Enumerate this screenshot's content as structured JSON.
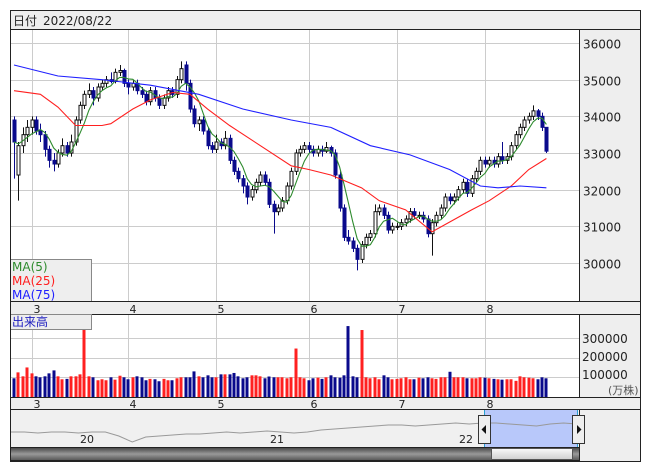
{
  "header": {
    "date_label": "日付",
    "date_value": "2022/08/22"
  },
  "legend": {
    "ma5": {
      "label": "MA(5)",
      "color": "#2e8b2e"
    },
    "ma25": {
      "label": "MA(25)",
      "color": "#ff2020"
    },
    "ma75": {
      "label": "MA(75)",
      "color": "#2020ff"
    }
  },
  "volume_panel": {
    "label": "出来高",
    "unit": "(万株)",
    "ticks": [
      "300000",
      "200000",
      "100000"
    ]
  },
  "navigator": {
    "labels": [
      "20",
      "21",
      "22"
    ]
  },
  "colors": {
    "up_candle": "#ffffff",
    "down_candle": "#0a0a8c",
    "up_volume": "#ff2020",
    "down_volume": "#0a0a8c",
    "selection": "#b8c8fa"
  },
  "chart_data": {
    "type": "candlestick",
    "title": "",
    "y_ticks": [
      "36000",
      "35000",
      "34000",
      "33000",
      "32000",
      "31000",
      "30000"
    ],
    "ylim": [
      29000,
      36300
    ],
    "month_ticks": [
      {
        "label": "3",
        "index": 4
      },
      {
        "label": "4",
        "index": 26
      },
      {
        "label": "5",
        "index": 46
      },
      {
        "label": "6",
        "index": 67
      },
      {
        "label": "7",
        "index": 87
      },
      {
        "label": "8",
        "index": 107
      }
    ],
    "grid": true,
    "ohlc": [
      [
        33900,
        34000,
        32300,
        33300
      ],
      [
        32400,
        33300,
        31700,
        33200
      ],
      [
        33200,
        33700,
        33000,
        33500
      ],
      [
        33500,
        33900,
        33300,
        33700
      ],
      [
        33700,
        34000,
        33500,
        33900
      ],
      [
        33900,
        34000,
        33500,
        33600
      ],
      [
        33600,
        33800,
        33300,
        33500
      ],
      [
        33500,
        33600,
        32900,
        33100
      ],
      [
        33100,
        33200,
        32600,
        32800
      ],
      [
        32800,
        33000,
        32500,
        32700
      ],
      [
        32700,
        33100,
        32600,
        33000
      ],
      [
        33000,
        33400,
        32900,
        33200
      ],
      [
        33200,
        33300,
        32900,
        33000
      ],
      [
        33000,
        33500,
        32900,
        33300
      ],
      [
        33300,
        34000,
        33200,
        33900
      ],
      [
        33900,
        34400,
        33800,
        34300
      ],
      [
        34300,
        34700,
        34200,
        34600
      ],
      [
        34600,
        34900,
        34500,
        34700
      ],
      [
        34700,
        34800,
        34300,
        34500
      ],
      [
        34500,
        34900,
        34400,
        34800
      ],
      [
        34800,
        35000,
        34700,
        34900
      ],
      [
        34900,
        35100,
        34800,
        35000
      ],
      [
        35000,
        35200,
        34900,
        34950
      ],
      [
        34950,
        35300,
        34900,
        35200
      ],
      [
        35200,
        35400,
        35100,
        35250
      ],
      [
        35250,
        35300,
        34800,
        34900
      ],
      [
        34900,
        35000,
        34600,
        34800
      ],
      [
        34800,
        35000,
        34700,
        34900
      ],
      [
        34900,
        35000,
        34600,
        34700
      ],
      [
        34700,
        34800,
        34500,
        34600
      ],
      [
        34600,
        34700,
        34300,
        34400
      ],
      [
        34400,
        34800,
        34300,
        34700
      ],
      [
        34700,
        34800,
        34400,
        34500
      ],
      [
        34500,
        34600,
        34200,
        34300
      ],
      [
        34300,
        34600,
        34200,
        34500
      ],
      [
        34500,
        34800,
        34400,
        34700
      ],
      [
        34700,
        34800,
        34500,
        34600
      ],
      [
        34600,
        35100,
        34500,
        35000
      ],
      [
        35000,
        35500,
        34900,
        35300
      ],
      [
        35400,
        35500,
        34700,
        34900
      ],
      [
        34900,
        35000,
        34100,
        34200
      ],
      [
        34200,
        34300,
        33700,
        33800
      ],
      [
        33800,
        34000,
        33600,
        33900
      ],
      [
        33900,
        34000,
        33500,
        33600
      ],
      [
        33600,
        33700,
        33100,
        33200
      ],
      [
        33200,
        33300,
        33000,
        33100
      ],
      [
        33100,
        33500,
        33000,
        33300
      ],
      [
        33300,
        33400,
        33100,
        33200
      ],
      [
        33200,
        33600,
        33100,
        33400
      ],
      [
        33400,
        33500,
        32700,
        32800
      ],
      [
        32800,
        32900,
        32400,
        32500
      ],
      [
        32500,
        32600,
        32200,
        32300
      ],
      [
        32300,
        32400,
        31900,
        32100
      ],
      [
        32100,
        32200,
        31600,
        31800
      ],
      [
        31800,
        32100,
        31700,
        32000
      ],
      [
        32000,
        32300,
        31900,
        32200
      ],
      [
        32200,
        32500,
        32100,
        32400
      ],
      [
        32400,
        32500,
        32100,
        32200
      ],
      [
        32200,
        32300,
        31500,
        31600
      ],
      [
        31600,
        31700,
        30800,
        31400
      ],
      [
        31400,
        31600,
        31300,
        31500
      ],
      [
        31500,
        31800,
        31400,
        31700
      ],
      [
        31700,
        32200,
        31600,
        32100
      ],
      [
        32100,
        32600,
        32000,
        32500
      ],
      [
        32500,
        33100,
        32400,
        33000
      ],
      [
        33000,
        33200,
        32900,
        33100
      ],
      [
        33100,
        33300,
        33000,
        33200
      ],
      [
        33200,
        33300,
        33000,
        33100
      ],
      [
        33100,
        33200,
        32900,
        33000
      ],
      [
        33000,
        33200,
        32900,
        33100
      ],
      [
        33100,
        33200,
        32900,
        33050
      ],
      [
        33050,
        33300,
        33000,
        33150
      ],
      [
        33150,
        33200,
        32900,
        33000
      ],
      [
        33000,
        33100,
        32300,
        32400
      ],
      [
        32400,
        32500,
        31400,
        31500
      ],
      [
        31500,
        31600,
        30600,
        30700
      ],
      [
        30700,
        30900,
        30500,
        30600
      ],
      [
        30600,
        30700,
        30300,
        30400
      ],
      [
        30400,
        30500,
        29800,
        30100
      ],
      [
        30100,
        30600,
        30000,
        30500
      ],
      [
        30500,
        30800,
        30400,
        30700
      ],
      [
        30700,
        30900,
        30600,
        30800
      ],
      [
        30800,
        31600,
        30700,
        31400
      ],
      [
        31400,
        31600,
        31300,
        31500
      ],
      [
        31500,
        31600,
        31200,
        31300
      ],
      [
        31300,
        31400,
        30800,
        30900
      ],
      [
        30900,
        31100,
        30800,
        31000
      ],
      [
        31000,
        31100,
        30900,
        31000
      ],
      [
        31000,
        31200,
        30900,
        31100
      ],
      [
        31100,
        31300,
        31000,
        31200
      ],
      [
        31200,
        31500,
        31100,
        31400
      ],
      [
        31400,
        31500,
        31200,
        31300
      ],
      [
        31300,
        31400,
        31200,
        31300
      ],
      [
        31300,
        31400,
        31100,
        31200
      ],
      [
        31200,
        31300,
        30700,
        30800
      ],
      [
        30800,
        31200,
        30200,
        31100
      ],
      [
        31100,
        31400,
        31000,
        31300
      ],
      [
        31300,
        31600,
        31200,
        31500
      ],
      [
        31500,
        31900,
        31400,
        31800
      ],
      [
        31800,
        31900,
        31600,
        31700
      ],
      [
        31700,
        31900,
        31600,
        31800
      ],
      [
        31800,
        32100,
        31700,
        32000
      ],
      [
        32000,
        32300,
        31900,
        32200
      ],
      [
        32200,
        32300,
        31800,
        31900
      ],
      [
        31900,
        32400,
        31800,
        32300
      ],
      [
        32300,
        32600,
        32200,
        32500
      ],
      [
        32500,
        32900,
        32400,
        32800
      ],
      [
        32800,
        32900,
        32600,
        32700
      ],
      [
        32700,
        32900,
        32600,
        32800
      ],
      [
        32800,
        32900,
        32600,
        32700
      ],
      [
        32700,
        33000,
        32600,
        32900
      ],
      [
        32900,
        33300,
        32700,
        32800
      ],
      [
        32800,
        33000,
        32700,
        32900
      ],
      [
        32900,
        33300,
        32800,
        33200
      ],
      [
        33200,
        33600,
        33100,
        33500
      ],
      [
        33500,
        33800,
        33400,
        33700
      ],
      [
        33700,
        34000,
        33600,
        33900
      ],
      [
        33900,
        34100,
        33800,
        34000
      ],
      [
        34000,
        34300,
        33900,
        34150
      ],
      [
        34150,
        34200,
        33900,
        34000
      ],
      [
        34000,
        34100,
        33600,
        33700
      ],
      [
        33700,
        33700,
        33000,
        33050
      ]
    ],
    "volume": [
      95000,
      125000,
      105000,
      150000,
      120000,
      105000,
      100000,
      105000,
      120000,
      135000,
      105000,
      90000,
      92000,
      105000,
      105000,
      115000,
      360000,
      105000,
      100000,
      85000,
      90000,
      85000,
      100000,
      88000,
      108000,
      100000,
      90000,
      100000,
      105000,
      100000,
      85000,
      92000,
      90000,
      80000,
      92000,
      85000,
      85000,
      95000,
      100000,
      100000,
      100000,
      130000,
      105000,
      100000,
      110000,
      100000,
      100000,
      115000,
      115000,
      115000,
      122000,
      105000,
      95000,
      100000,
      110000,
      110000,
      105000,
      95000,
      104000,
      100000,
      100000,
      100000,
      95000,
      100000,
      246000,
      100000,
      95000,
      85000,
      95000,
      98000,
      92000,
      100000,
      110000,
      100000,
      98000,
      110000,
      360000,
      105000,
      100000,
      340000,
      100000,
      95000,
      100000,
      90000,
      110000,
      100000,
      90000,
      92000,
      95000,
      100000,
      90000,
      90000,
      98000,
      95000,
      100000,
      95000,
      92000,
      100000,
      100000,
      128000,
      100000,
      100000,
      100000,
      95000,
      95000,
      95000,
      100000,
      98000,
      95000,
      92000,
      90000,
      88000,
      90000,
      90000,
      82000,
      105000,
      100000,
      98000,
      95000,
      90000,
      100000,
      95000
    ],
    "series": [
      {
        "name": "MA(25)",
        "points": [
          [
            0,
            34700
          ],
          [
            6,
            34600
          ],
          [
            10,
            34250
          ],
          [
            14,
            33750
          ],
          [
            20,
            33750
          ],
          [
            22,
            33800
          ],
          [
            27,
            34200
          ],
          [
            31,
            34450
          ],
          [
            36,
            34650
          ],
          [
            40,
            34600
          ],
          [
            44,
            34200
          ],
          [
            49,
            33750
          ],
          [
            56,
            33200
          ],
          [
            63,
            32650
          ],
          [
            67,
            32550
          ],
          [
            72,
            32400
          ],
          [
            79,
            32050
          ],
          [
            83,
            31700
          ],
          [
            89,
            31450
          ],
          [
            95,
            30850
          ],
          [
            98,
            31050
          ],
          [
            104,
            31450
          ],
          [
            108,
            31700
          ],
          [
            113,
            32100
          ],
          [
            117,
            32550
          ],
          [
            121,
            32850
          ]
        ]
      },
      {
        "name": "MA(75)",
        "points": [
          [
            0,
            35400
          ],
          [
            10,
            35100
          ],
          [
            20,
            35000
          ],
          [
            31,
            34850
          ],
          [
            42,
            34600
          ],
          [
            52,
            34200
          ],
          [
            63,
            33900
          ],
          [
            72,
            33700
          ],
          [
            81,
            33200
          ],
          [
            90,
            32950
          ],
          [
            99,
            32550
          ],
          [
            106,
            32100
          ],
          [
            110,
            32050
          ],
          [
            115,
            32100
          ],
          [
            121,
            32050
          ]
        ]
      }
    ],
    "navigator_overview": [
      31800,
      31800,
      31750,
      31800,
      31800,
      31750,
      31800,
      31800,
      31600,
      31300,
      31550,
      31600,
      31650,
      31700,
      31700,
      31750,
      31800,
      31750,
      31800,
      31850,
      31800,
      31750,
      31800,
      31900,
      31950,
      32000,
      32050,
      32100,
      32150,
      32150,
      32100,
      32150,
      32200,
      32250,
      32200,
      32250,
      32250,
      32200,
      32150,
      32100,
      32200,
      32250,
      32200
    ]
  }
}
